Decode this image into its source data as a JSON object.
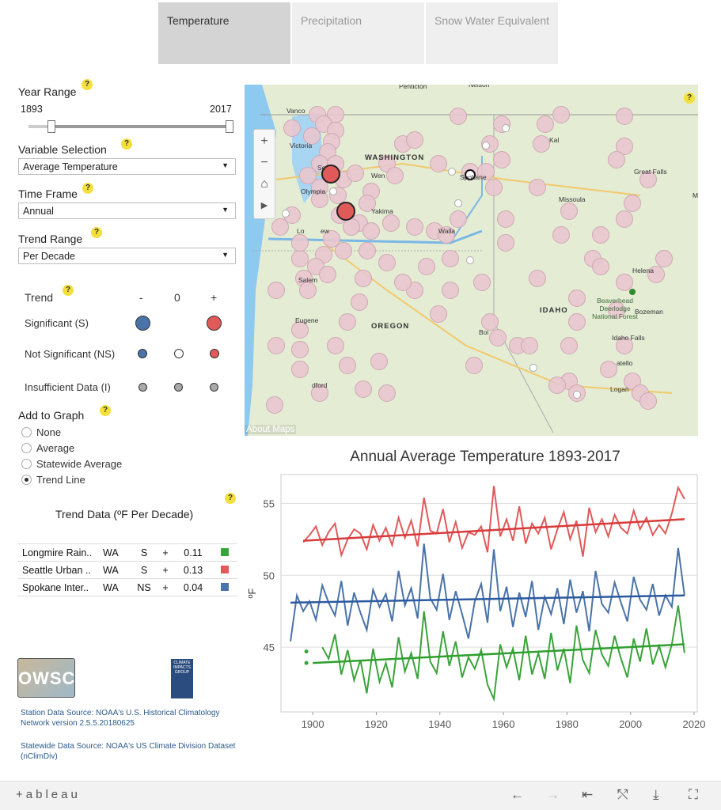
{
  "tabs": [
    {
      "label": "Temperature"
    },
    {
      "label": "Precipitation"
    },
    {
      "label": "Snow Water Equivalent"
    }
  ],
  "help_glyph": "?",
  "year_range": {
    "label": "Year Range",
    "min": "1893",
    "max": "2017"
  },
  "variable": {
    "label": "Variable Selection",
    "value": "Average Temperature"
  },
  "time_frame": {
    "label": "Time Frame",
    "value": "Annual"
  },
  "trend_range": {
    "label": "Trend Range",
    "value": "Per Decade"
  },
  "legend": {
    "title": "Trend",
    "minus": "-",
    "zero": "0",
    "plus": "+",
    "rows": [
      "Significant (S)",
      "Not Significant (NS)",
      "Insufficient Data (I)"
    ],
    "colors": {
      "negative": "#4a73a8",
      "neutral": "#ffffff",
      "positive": "#e05a5a",
      "insufficient": "#a9a9a9"
    }
  },
  "add_to_graph": {
    "label": "Add to Graph",
    "options": [
      "None",
      "Average",
      "Statewide Average",
      "Trend Line"
    ],
    "selected": "Trend Line"
  },
  "trend_data": {
    "title": "Trend Data (ºF Per Decade)",
    "rows": [
      {
        "station": "Longmire Rain..",
        "state": "WA",
        "sig": "S",
        "sign": "+",
        "value": "0.11",
        "color": "#3aa33a"
      },
      {
        "station": "Seattle Urban ..",
        "state": "WA",
        "sig": "S",
        "sign": "+",
        "value": "0.13",
        "color": "#e05a5a"
      },
      {
        "station": "Spokane Inter..",
        "state": "WA",
        "sig": "NS",
        "sign": "+",
        "value": "0.04",
        "color": "#4a73a8"
      }
    ]
  },
  "logos": {
    "owsc": "OWSC",
    "cig": "CLIMATE IMPACTS GROUP"
  },
  "sources": [
    "Station Data Source: NOAA's U.S. Historical Climatology Network version 2.5.5.20180625",
    "Statewide Data Source: NOAA's US Climate Division Dataset (nClimDiv)"
  ],
  "map": {
    "attribution": "About Maps",
    "labels": [
      "Penticton",
      "Nelson",
      "Vanco",
      "Victoria",
      "WASHINGTON",
      "Se",
      "Olympia",
      "Wen",
      "Spokane",
      "Kal",
      "Great Falls",
      "Missoula",
      "Yakima",
      "Lo",
      "ew",
      "Walla",
      "Helena",
      "Salem",
      "Bozeman",
      "Eugene",
      "OREGON",
      "IDAHO",
      "Beaverhead Deerlodge National Forest",
      "Boi",
      "Idaho Falls",
      "atello",
      "dford",
      "Logan",
      "M"
    ],
    "zoom_in": "+",
    "zoom_out": "−",
    "home": "⌂",
    "expand": "▶"
  },
  "chart_data": {
    "type": "line",
    "title": "Annual Average Temperature 1893-2017",
    "ylabel": "ºF",
    "xlim": [
      1890,
      2021
    ],
    "ylim": [
      40.5,
      57
    ],
    "xticks": [
      1900,
      1920,
      1940,
      1960,
      1980,
      2000,
      2020
    ],
    "yticks": [
      45,
      50,
      55
    ],
    "grid": true,
    "series": [
      {
        "color": "#e05a5a",
        "x": [
          1897,
          1899,
          1901,
          1903,
          1905,
          1907,
          1909,
          1911,
          1913,
          1915,
          1917,
          1919,
          1921,
          1923,
          1925,
          1927,
          1929,
          1931,
          1933,
          1935,
          1937,
          1939,
          1941,
          1943,
          1945,
          1947,
          1949,
          1951,
          1953,
          1955,
          1957,
          1959,
          1961,
          1963,
          1965,
          1967,
          1969,
          1971,
          1973,
          1975,
          1977,
          1979,
          1981,
          1983,
          1985,
          1987,
          1989,
          1991,
          1993,
          1995,
          1997,
          1999,
          2001,
          2003,
          2005,
          2007,
          2009,
          2011,
          2013,
          2015,
          2017
        ],
        "values": [
          52.3,
          52.8,
          53.4,
          52.1,
          53.0,
          53.6,
          51.4,
          52.5,
          53.2,
          52.9,
          51.8,
          53.5,
          52.4,
          53.3,
          52.1,
          54.0,
          52.6,
          53.8,
          52.0,
          55.4,
          53.1,
          52.9,
          54.6,
          52.3,
          53.7,
          51.9,
          53.0,
          52.8,
          53.4,
          51.6,
          56.2,
          52.7,
          53.9,
          52.4,
          54.8,
          52.2,
          53.6,
          52.9,
          54.0,
          51.8,
          53.2,
          54.4,
          52.5,
          53.8,
          51.3,
          54.7,
          53.0,
          53.9,
          52.7,
          54.2,
          53.3,
          52.9,
          54.5,
          53.2,
          54.0,
          52.8,
          53.5,
          52.9,
          54.3,
          56.1,
          55.3
        ]
      },
      {
        "color": "#4a73a8",
        "x": [
          1893,
          1895,
          1897,
          1899,
          1901,
          1903,
          1905,
          1907,
          1909,
          1911,
          1913,
          1915,
          1917,
          1919,
          1921,
          1923,
          1925,
          1927,
          1929,
          1931,
          1933,
          1935,
          1937,
          1939,
          1941,
          1943,
          1945,
          1947,
          1949,
          1951,
          1953,
          1955,
          1957,
          1959,
          1961,
          1963,
          1965,
          1967,
          1969,
          1971,
          1973,
          1975,
          1977,
          1979,
          1981,
          1983,
          1985,
          1987,
          1989,
          1991,
          1993,
          1995,
          1997,
          1999,
          2001,
          2003,
          2005,
          2007,
          2009,
          2011,
          2013,
          2015,
          2017
        ],
        "values": [
          45.4,
          48.6,
          47.5,
          48.2,
          46.9,
          49.3,
          48.1,
          47.2,
          49.6,
          46.5,
          48.8,
          47.4,
          46.2,
          49.0,
          47.8,
          48.7,
          46.8,
          50.3,
          47.9,
          49.1,
          47.0,
          52.2,
          48.4,
          47.6,
          50.1,
          46.9,
          48.9,
          47.3,
          45.6,
          48.2,
          49.4,
          46.7,
          51.8,
          47.5,
          49.2,
          46.4,
          48.8,
          47.1,
          49.6,
          46.2,
          48.5,
          47.3,
          49.1,
          46.6,
          49.7,
          47.4,
          48.9,
          46.1,
          50.3,
          48.0,
          47.4,
          49.5,
          48.1,
          46.8,
          49.9,
          48.3,
          47.6,
          49.4,
          47.2,
          48.6,
          47.8,
          51.9,
          48.6
        ]
      },
      {
        "color": "#3aa33a",
        "x": [
          1903,
          1905,
          1907,
          1909,
          1911,
          1913,
          1915,
          1917,
          1919,
          1921,
          1923,
          1925,
          1927,
          1929,
          1931,
          1933,
          1935,
          1937,
          1939,
          1941,
          1943,
          1945,
          1947,
          1949,
          1951,
          1953,
          1955,
          1957,
          1959,
          1961,
          1963,
          1965,
          1967,
          1969,
          1971,
          1973,
          1975,
          1977,
          1979,
          1981,
          1983,
          1985,
          1987,
          1989,
          1991,
          1993,
          1995,
          1997,
          1999,
          2001,
          2003,
          2005,
          2007,
          2009,
          2011,
          2013,
          2015,
          2017
        ],
        "values": [
          45.0,
          44.2,
          45.9,
          43.1,
          44.8,
          42.7,
          44.1,
          41.8,
          44.9,
          42.6,
          43.9,
          42.2,
          45.7,
          43.3,
          44.6,
          42.8,
          47.5,
          44.0,
          43.2,
          46.1,
          43.7,
          45.4,
          42.9,
          44.3,
          43.5,
          44.8,
          42.4,
          41.4,
          45.2,
          43.6,
          44.9,
          42.7,
          45.8,
          43.1,
          44.6,
          42.8,
          46.0,
          43.4,
          44.9,
          42.5,
          46.5,
          44.1,
          43.2,
          46.2,
          44.5,
          43.7,
          45.8,
          44.2,
          42.9,
          45.6,
          44.0,
          46.3,
          43.8,
          45.1,
          43.6,
          45.2,
          47.9,
          44.6
        ]
      },
      {
        "color": "#3aa33a",
        "x": [
          1898,
          1898
        ],
        "values": [
          44.7,
          43.9
        ],
        "marks": "points"
      }
    ],
    "trend_lines": [
      {
        "color": "#d93a3a",
        "x": [
          1897,
          2017
        ],
        "values": [
          52.4,
          53.9
        ]
      },
      {
        "color": "#2c5aa0",
        "x": [
          1893,
          2017
        ],
        "values": [
          48.1,
          48.6
        ]
      },
      {
        "color": "#2fa02f",
        "x": [
          1900,
          2017
        ],
        "values": [
          43.9,
          45.2
        ]
      }
    ]
  },
  "footer": {
    "logo": "+ableau",
    "controls": [
      "←",
      "→",
      "⇤",
      "⤲",
      "⤓",
      "⛶"
    ]
  }
}
